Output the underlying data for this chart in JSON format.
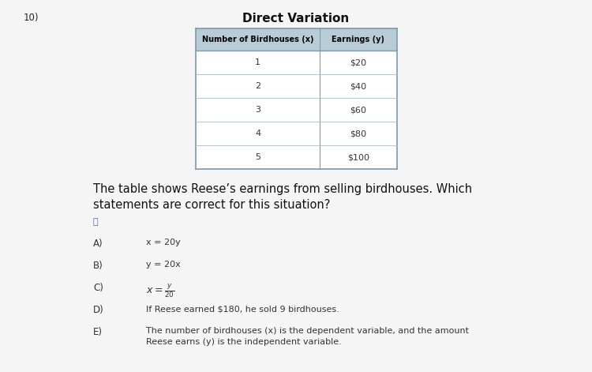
{
  "question_number": "10)",
  "title": "Direct Variation",
  "table_header": [
    "Number of Birdhouses (x)",
    "Earnings (y)"
  ],
  "table_rows": [
    [
      "1",
      "$20"
    ],
    [
      "2",
      "$40"
    ],
    [
      "3",
      "$60"
    ],
    [
      "4",
      "$80"
    ],
    [
      "5",
      "$100"
    ]
  ],
  "question_text_line1": "The table shows Reese’s earnings from selling birdhouses. Which",
  "question_text_line2": "statements are correct for this situation?",
  "options": [
    {
      "label": "A)",
      "text": "x = 20y",
      "use_math": false
    },
    {
      "label": "B)",
      "text": "y = 20x",
      "use_math": false
    },
    {
      "label": "C)",
      "text": "x = y/20_frac",
      "use_math": true
    },
    {
      "label": "D)",
      "text": "If Reese earned $180, he sold 9 birdhouses.",
      "use_math": false
    },
    {
      "label": "E)",
      "text_line1": "The number of birdhouses (x) is the dependent variable, and the amount",
      "text_line2": "Reese earns (y) is the independent variable.",
      "use_math": false,
      "multiline": true
    }
  ],
  "page_color": "#f5f5f5",
  "header_bg": "#b8ccd8",
  "table_line_color": "#9aaab8",
  "title_fontsize": 11,
  "body_fontsize": 8.5,
  "option_label_fontsize": 8.5,
  "option_text_fontsize": 8.0,
  "question_fontsize": 10.5
}
